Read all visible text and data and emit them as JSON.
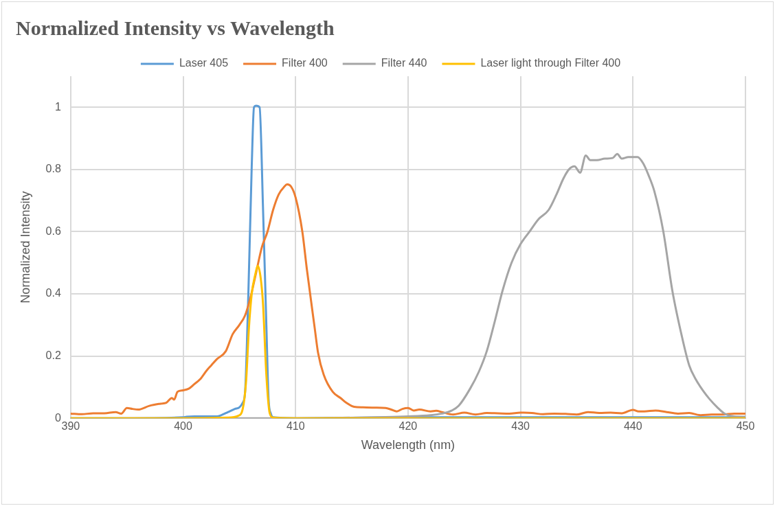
{
  "chart_data": {
    "type": "line",
    "title": "Normalized Intensity vs Wavelength",
    "xlabel": "Wavelength (nm)",
    "ylabel": "Normalized Intensity",
    "xlim": [
      390,
      450
    ],
    "xticks": [
      390,
      400,
      410,
      420,
      430,
      440,
      450
    ],
    "ylim": [
      0,
      1.1
    ],
    "yticks": [
      0,
      0.2,
      0.4,
      0.6,
      0.8,
      1
    ],
    "grid": true,
    "legend": "top",
    "marker": "none",
    "line_style": "solid",
    "series": [
      {
        "name": "Laser 405",
        "color": "#5b9bd5",
        "x": [
          390,
          395,
          400,
          400.3,
          401,
          402,
          403,
          403.4,
          404,
          404.6,
          405,
          405.3,
          405.5,
          405.8,
          406.1,
          406.3,
          406.5,
          406.8,
          407.1,
          407.4,
          407.6,
          407.8,
          408,
          410,
          420,
          450
        ],
        "values": [
          0,
          0,
          0.003,
          0.005,
          0.006,
          0.006,
          0.006,
          0.01,
          0.02,
          0.03,
          0.035,
          0.05,
          0.08,
          0.4,
          0.81,
          1,
          1.005,
          1,
          0.68,
          0.3,
          0.06,
          0.015,
          0.003,
          0,
          0.003,
          0.003
        ]
      },
      {
        "name": "Filter 400",
        "color": "#ed7d31",
        "x": [
          390,
          391,
          392,
          393,
          394,
          394.5,
          395,
          395.5,
          396,
          397,
          398,
          398.5,
          399,
          399.2,
          399.5,
          400,
          400.5,
          401,
          401.5,
          402.1,
          402.5,
          403,
          403.8,
          404.4,
          405,
          405.5,
          406,
          406.5,
          407,
          407.5,
          408,
          408.5,
          409,
          409.25,
          409.6,
          410,
          410.6,
          411,
          411.7,
          412,
          412.5,
          413.3,
          414,
          414.5,
          415.2,
          416,
          417,
          418,
          418.5,
          419,
          419.5,
          420,
          420.5,
          421,
          422,
          422.5,
          423,
          424,
          425,
          426,
          427,
          428,
          429,
          430,
          431,
          432,
          433,
          434,
          435,
          436,
          437,
          438,
          439,
          440,
          440.5,
          441,
          442,
          443,
          444,
          445,
          446,
          447,
          448,
          449,
          450
        ],
        "values": [
          0.015,
          0.013,
          0.016,
          0.016,
          0.02,
          0.015,
          0.033,
          0.03,
          0.028,
          0.04,
          0.047,
          0.05,
          0.065,
          0.06,
          0.085,
          0.09,
          0.095,
          0.11,
          0.125,
          0.154,
          0.17,
          0.19,
          0.216,
          0.27,
          0.3,
          0.33,
          0.39,
          0.47,
          0.55,
          0.6,
          0.67,
          0.72,
          0.745,
          0.752,
          0.745,
          0.71,
          0.6,
          0.48,
          0.29,
          0.21,
          0.14,
          0.085,
          0.065,
          0.05,
          0.037,
          0.035,
          0.034,
          0.033,
          0.028,
          0.022,
          0.03,
          0.033,
          0.025,
          0.028,
          0.022,
          0.024,
          0.02,
          0.012,
          0.018,
          0.012,
          0.017,
          0.016,
          0.015,
          0.018,
          0.017,
          0.013,
          0.015,
          0.014,
          0.012,
          0.02,
          0.017,
          0.018,
          0.016,
          0.027,
          0.022,
          0.022,
          0.025,
          0.02,
          0.015,
          0.017,
          0.01,
          0.012,
          0.012,
          0.015,
          0.015
        ]
      },
      {
        "name": "Filter 440",
        "color": "#a5a5a5",
        "x": [
          390,
          400,
          410,
          418,
          420,
          422,
          423,
          423.9,
          424.5,
          425.5,
          426.3,
          427,
          427.7,
          428.4,
          429.2,
          430,
          430.8,
          431.6,
          432.5,
          433.2,
          433.8,
          434.3,
          434.8,
          435.3,
          435.8,
          436.2,
          436.8,
          437.5,
          438.2,
          438.6,
          439,
          439.6,
          440.4,
          440.9,
          441.4,
          441.9,
          442.7,
          443.5,
          444.4,
          445,
          445.6,
          446.2,
          446.8,
          447.5,
          448.1,
          449,
          450
        ],
        "values": [
          0,
          0,
          0,
          0.004,
          0.006,
          0.01,
          0.015,
          0.025,
          0.04,
          0.094,
          0.15,
          0.216,
          0.31,
          0.41,
          0.5,
          0.56,
          0.6,
          0.64,
          0.67,
          0.72,
          0.77,
          0.8,
          0.81,
          0.79,
          0.845,
          0.83,
          0.83,
          0.835,
          0.837,
          0.85,
          0.835,
          0.84,
          0.84,
          0.82,
          0.78,
          0.73,
          0.6,
          0.41,
          0.255,
          0.17,
          0.124,
          0.09,
          0.062,
          0.035,
          0.016,
          0.006,
          0.005
        ]
      },
      {
        "name": "Laser light through Filter 400",
        "color": "#ffc000",
        "x": [
          390,
          400,
          404,
          404.9,
          405.3,
          405.6,
          405.85,
          406.1,
          406.4,
          406.65,
          406.9,
          407.1,
          407.4,
          407.7,
          408,
          410,
          450
        ],
        "values": [
          0,
          0,
          0.002,
          0.008,
          0.03,
          0.12,
          0.29,
          0.4,
          0.46,
          0.49,
          0.45,
          0.37,
          0.14,
          0.016,
          0.002,
          0,
          0
        ]
      }
    ]
  }
}
